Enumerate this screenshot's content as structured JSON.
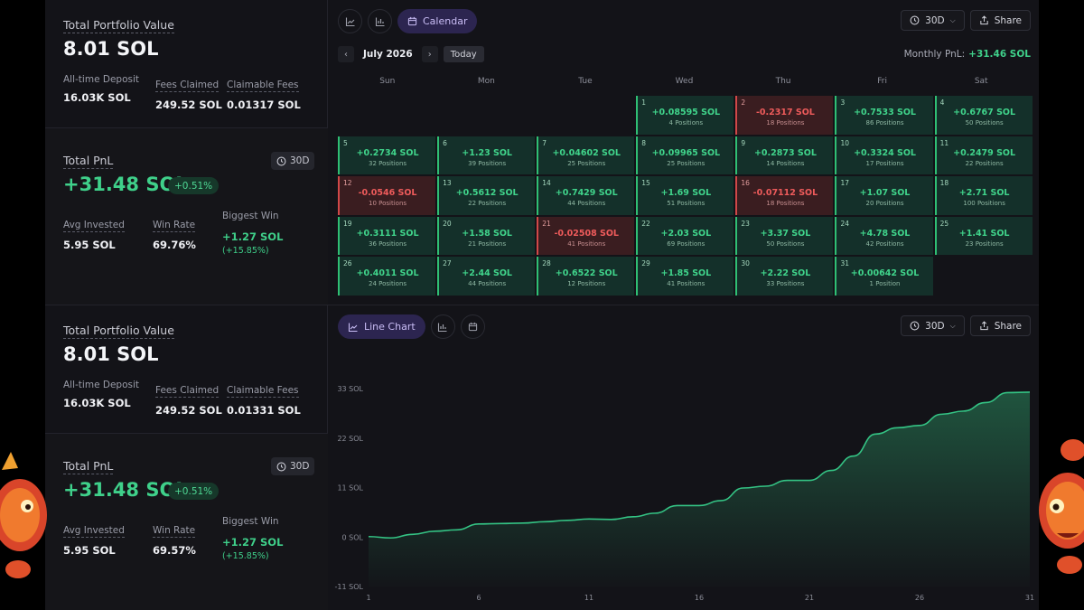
{
  "top": {
    "portfolio": {
      "title": "Total Portfolio Value",
      "value": "8.01 SOL",
      "alltime_label": "All-time Deposit",
      "alltime_value": "16.03K SOL",
      "fees_label": "Fees Claimed",
      "fees_value": "249.52 SOL",
      "claimable_label": "Claimable Fees",
      "claimable_value": "0.01317 SOL"
    },
    "pnl": {
      "title": "Total PnL",
      "period": "30D",
      "value": "+31.48 SOL",
      "pct": "+0.51%",
      "avg_label": "Avg Invested",
      "avg_value": "5.95 SOL",
      "winrate_label": "Win Rate",
      "winrate_value": "69.76%",
      "biggest_label": "Biggest Win",
      "biggest_value": "+1.27 SOL",
      "biggest_pct": "(+15.85%)"
    },
    "toolbar": {
      "calendar_label": "Calendar",
      "period": "30D",
      "share": "Share"
    },
    "month": {
      "label": "July 2026",
      "today": "Today",
      "monthly_label": "Monthly PnL:",
      "monthly_value": "+31.46 SOL"
    },
    "weekdays": [
      "Sun",
      "Mon",
      "Tue",
      "Wed",
      "Thu",
      "Fri",
      "Sat"
    ],
    "first_weekday": 3,
    "days": [
      {
        "d": "1",
        "v": "+0.08595 SOL",
        "p": "4 Positions",
        "neg": false
      },
      {
        "d": "2",
        "v": "-0.2317 SOL",
        "p": "18 Positions",
        "neg": true
      },
      {
        "d": "3",
        "v": "+0.7533 SOL",
        "p": "86 Positions",
        "neg": false
      },
      {
        "d": "4",
        "v": "+0.6767 SOL",
        "p": "50 Positions",
        "neg": false
      },
      {
        "d": "5",
        "v": "+0.2734 SOL",
        "p": "32 Positions",
        "neg": false
      },
      {
        "d": "6",
        "v": "+1.23 SOL",
        "p": "39 Positions",
        "neg": false
      },
      {
        "d": "7",
        "v": "+0.04602 SOL",
        "p": "25 Positions",
        "neg": false
      },
      {
        "d": "8",
        "v": "+0.09965 SOL",
        "p": "25 Positions",
        "neg": false
      },
      {
        "d": "9",
        "v": "+0.2873 SOL",
        "p": "14 Positions",
        "neg": false
      },
      {
        "d": "10",
        "v": "+0.3324 SOL",
        "p": "17 Positions",
        "neg": false
      },
      {
        "d": "11",
        "v": "+0.2479 SOL",
        "p": "22 Positions",
        "neg": false
      },
      {
        "d": "12",
        "v": "-0.0546 SOL",
        "p": "10 Positions",
        "neg": true
      },
      {
        "d": "13",
        "v": "+0.5612 SOL",
        "p": "22 Positions",
        "neg": false
      },
      {
        "d": "14",
        "v": "+0.7429 SOL",
        "p": "44 Positions",
        "neg": false
      },
      {
        "d": "15",
        "v": "+1.69 SOL",
        "p": "51 Positions",
        "neg": false
      },
      {
        "d": "16",
        "v": "-0.07112 SOL",
        "p": "18 Positions",
        "neg": true
      },
      {
        "d": "17",
        "v": "+1.07 SOL",
        "p": "20 Positions",
        "neg": false
      },
      {
        "d": "18",
        "v": "+2.71 SOL",
        "p": "100 Positions",
        "neg": false
      },
      {
        "d": "19",
        "v": "+0.3111 SOL",
        "p": "36 Positions",
        "neg": false
      },
      {
        "d": "20",
        "v": "+1.58 SOL",
        "p": "21 Positions",
        "neg": false
      },
      {
        "d": "21",
        "v": "-0.02508 SOL",
        "p": "41 Positions",
        "neg": true
      },
      {
        "d": "22",
        "v": "+2.03 SOL",
        "p": "69 Positions",
        "neg": false
      },
      {
        "d": "23",
        "v": "+3.37 SOL",
        "p": "50 Positions",
        "neg": false
      },
      {
        "d": "24",
        "v": "+4.78 SOL",
        "p": "42 Positions",
        "neg": false
      },
      {
        "d": "25",
        "v": "+1.41 SOL",
        "p": "23 Positions",
        "neg": false
      },
      {
        "d": "26",
        "v": "+0.4011 SOL",
        "p": "24 Positions",
        "neg": false
      },
      {
        "d": "27",
        "v": "+2.44 SOL",
        "p": "44 Positions",
        "neg": false
      },
      {
        "d": "28",
        "v": "+0.6522 SOL",
        "p": "12 Positions",
        "neg": false
      },
      {
        "d": "29",
        "v": "+1.85 SOL",
        "p": "41 Positions",
        "neg": false
      },
      {
        "d": "30",
        "v": "+2.22 SOL",
        "p": "33 Positions",
        "neg": false
      },
      {
        "d": "31",
        "v": "+0.00642 SOL",
        "p": "1 Position",
        "neg": false
      }
    ]
  },
  "bottom": {
    "portfolio": {
      "title": "Total Portfolio Value",
      "value": "8.01 SOL",
      "alltime_label": "All-time Deposit",
      "alltime_value": "16.03K SOL",
      "fees_label": "Fees Claimed",
      "fees_value": "249.52 SOL",
      "claimable_label": "Claimable Fees",
      "claimable_value": "0.01331 SOL"
    },
    "pnl": {
      "title": "Total PnL",
      "period": "30D",
      "value": "+31.48 SOL",
      "pct": "+0.51%",
      "avg_label": "Avg Invested",
      "avg_value": "5.95 SOL",
      "winrate_label": "Win Rate",
      "winrate_value": "69.57%",
      "biggest_label": "Biggest Win",
      "biggest_value": "+1.27 SOL",
      "biggest_pct": "(+15.85%)"
    },
    "toolbar": {
      "line_label": "Line Chart",
      "period": "30D",
      "share": "Share"
    }
  },
  "chart_data": {
    "type": "area",
    "x": [
      1,
      2,
      3,
      4,
      5,
      6,
      7,
      8,
      9,
      10,
      11,
      12,
      13,
      14,
      15,
      16,
      17,
      18,
      19,
      20,
      21,
      22,
      23,
      24,
      25,
      26,
      27,
      28,
      29,
      30,
      31
    ],
    "series": [
      {
        "values": [
          0.1,
          -0.2,
          0.6,
          1.3,
          1.6,
          2.9,
          3.0,
          3.1,
          3.4,
          3.7,
          4.0,
          3.9,
          4.5,
          5.3,
          7.0,
          7.0,
          8.1,
          10.9,
          11.3,
          12.6,
          12.6,
          14.8,
          18.0,
          22.9,
          24.3,
          24.8,
          27.3,
          28.0,
          29.9,
          32.1,
          32.2
        ]
      }
    ],
    "yticks": [
      -11,
      0,
      11,
      22,
      33
    ],
    "ytick_labels": [
      "-11 SOL",
      "0 SOL",
      "11 SOL",
      "22 SOL",
      "33 SOL"
    ],
    "xticks": [
      1,
      6,
      11,
      16,
      21,
      26,
      31
    ],
    "ylim": [
      -11,
      33
    ],
    "xlim": [
      1,
      31
    ],
    "line_color": "#34c384"
  }
}
